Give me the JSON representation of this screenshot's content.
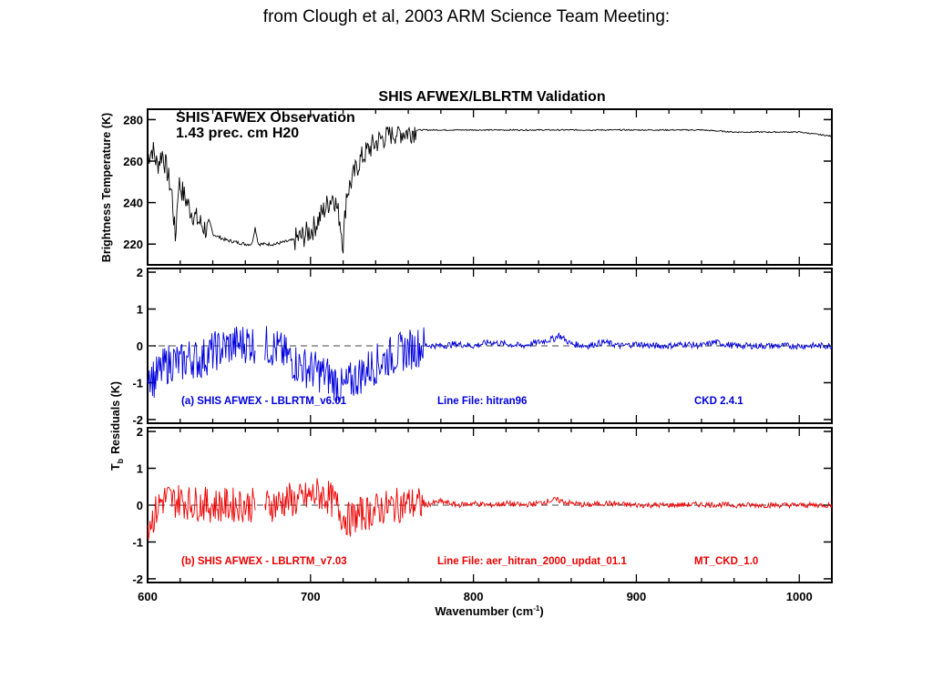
{
  "caption": "from Clough et al, 2003 ARM Science Team Meeting:",
  "figure": {
    "title": "SHIS AFWEX/LBLRTM Validation",
    "xlabel_main": "Wavenumber (cm",
    "xlabel_sup": "-1",
    "xlabel_close": ")",
    "colors": {
      "observation": "#000000",
      "residual_a": "#0000dd",
      "residual_b": "#ee0000",
      "zero_line": "#444444"
    }
  },
  "chart_data": [
    {
      "type": "line",
      "title": "SHIS AFWEX/LBLRTM Validation",
      "annotation_line1": "SHIS  AFWEX Observation",
      "annotation_line2": "1.43 prec. cm H20",
      "ylabel": "Brightness Temperature (K)",
      "xlim": [
        600,
        1020
      ],
      "ylim": [
        210,
        285
      ],
      "y_ticks": [
        "220",
        "240",
        "260",
        "280"
      ],
      "series": [
        {
          "x": [
            600,
            603,
            606,
            609,
            612,
            615,
            617,
            619,
            622,
            626,
            630,
            636,
            642,
            648,
            654,
            660,
            664,
            666,
            668,
            672,
            678,
            684,
            690,
            696,
            702,
            708,
            714,
            718,
            720,
            722,
            726,
            730,
            736,
            742,
            748,
            754,
            760,
            764,
            770,
            780,
            790,
            800,
            820,
            850,
            880,
            900,
            920,
            940,
            960,
            980,
            1000,
            1010,
            1020
          ],
          "y": [
            262,
            266,
            258,
            264,
            255,
            244,
            222,
            250,
            244,
            237,
            232,
            227,
            224,
            222,
            221,
            220,
            220,
            228,
            220,
            220,
            220,
            221,
            222,
            224,
            228,
            236,
            244,
            232,
            220,
            244,
            252,
            260,
            266,
            270,
            273,
            274,
            274,
            275,
            275,
            275,
            275,
            275,
            275,
            275,
            275,
            275,
            275,
            275,
            274,
            274,
            274,
            273,
            272
          ]
        }
      ]
    },
    {
      "type": "line",
      "ylabel": "Residuals (K)",
      "label_a": "(a)  SHIS  AFWEX - LBLRTM_v6.01",
      "label_line_file": "Line File: hitran96",
      "label_ckd": "CKD 2.4.1",
      "xlim": [
        600,
        1020
      ],
      "ylim": [
        -2.1,
        2.1
      ],
      "y_ticks": [
        "-2",
        "-1",
        "0",
        "1",
        "2"
      ],
      "series": [
        {
          "name": "(a)  SHIS  AFWEX - LBLRTM_v6.01",
          "x": [
            600,
            604,
            608,
            612,
            616,
            620,
            626,
            632,
            638,
            644,
            650,
            656,
            662,
            666,
            674,
            680,
            686,
            692,
            698,
            704,
            710,
            716,
            720,
            724,
            730,
            736,
            742,
            748,
            754,
            760,
            770,
            780,
            790,
            800,
            810,
            820,
            830,
            840,
            850,
            852,
            860,
            870,
            880,
            890,
            900,
            910,
            920,
            930,
            940,
            948,
            960,
            980,
            1000,
            1020
          ],
          "y": [
            -0.6,
            -0.9,
            -0.7,
            -0.5,
            -0.4,
            -0.5,
            -0.3,
            -0.4,
            -0.2,
            -0.1,
            0.0,
            0.05,
            0.1,
            0.05,
            0.0,
            -0.1,
            -0.3,
            -0.5,
            -0.6,
            -0.7,
            -0.8,
            -1.0,
            -1.2,
            -1.0,
            -0.8,
            -0.6,
            -0.45,
            -0.3,
            -0.2,
            -0.1,
            0.02,
            0.0,
            0.05,
            0.0,
            0.1,
            0.05,
            0.0,
            0.1,
            0.2,
            0.3,
            0.05,
            0.0,
            0.1,
            0.0,
            0.05,
            0.0,
            0.0,
            0.05,
            0.0,
            0.1,
            0.0,
            0.0,
            0.0,
            0.0
          ]
        }
      ]
    },
    {
      "type": "line",
      "ylabel": "Residuals (K)",
      "label_b": "(b)  SHIS  AFWEX - LBLRTM_v7.03",
      "label_line_file": "Line File: aer_hitran_2000_updat_01.1",
      "label_ckd": "MT_CKD_1.0",
      "xlim": [
        600,
        1020
      ],
      "ylim": [
        -2.1,
        2.1
      ],
      "y_ticks": [
        "-2",
        "-1",
        "0",
        "1",
        "2"
      ],
      "series": [
        {
          "name": "(b)  SHIS  AFWEX - LBLRTM_v7.03",
          "x": [
            600,
            604,
            608,
            612,
            616,
            620,
            626,
            632,
            638,
            644,
            650,
            656,
            662,
            666,
            674,
            680,
            686,
            692,
            698,
            704,
            710,
            716,
            720,
            724,
            730,
            736,
            742,
            748,
            754,
            760,
            770,
            780,
            790,
            800,
            810,
            820,
            830,
            840,
            850,
            860,
            870,
            880,
            900,
            920,
            940,
            960,
            980,
            1000,
            1020
          ],
          "y": [
            -0.5,
            -0.3,
            0.1,
            0.2,
            0.1,
            0.15,
            0.05,
            0.05,
            0.0,
            0.0,
            0.0,
            0.02,
            0.0,
            0.0,
            0.0,
            0.05,
            0.15,
            0.1,
            0.2,
            0.3,
            0.25,
            0.0,
            -0.3,
            -0.4,
            -0.25,
            -0.2,
            -0.1,
            -0.05,
            0.0,
            0.05,
            0.0,
            0.1,
            0.0,
            0.05,
            0.0,
            0.05,
            0.0,
            0.05,
            0.15,
            0.05,
            0.0,
            0.05,
            0.0,
            0.0,
            0.02,
            0.0,
            0.0,
            0.0,
            0.0
          ]
        }
      ]
    }
  ],
  "shared_ylabel": "Residuals (K)",
  "shared_ylabel_prefix": "T",
  "shared_ylabel_sub": "b",
  "x_ticks": [
    "600",
    "700",
    "800",
    "900",
    "1000"
  ]
}
